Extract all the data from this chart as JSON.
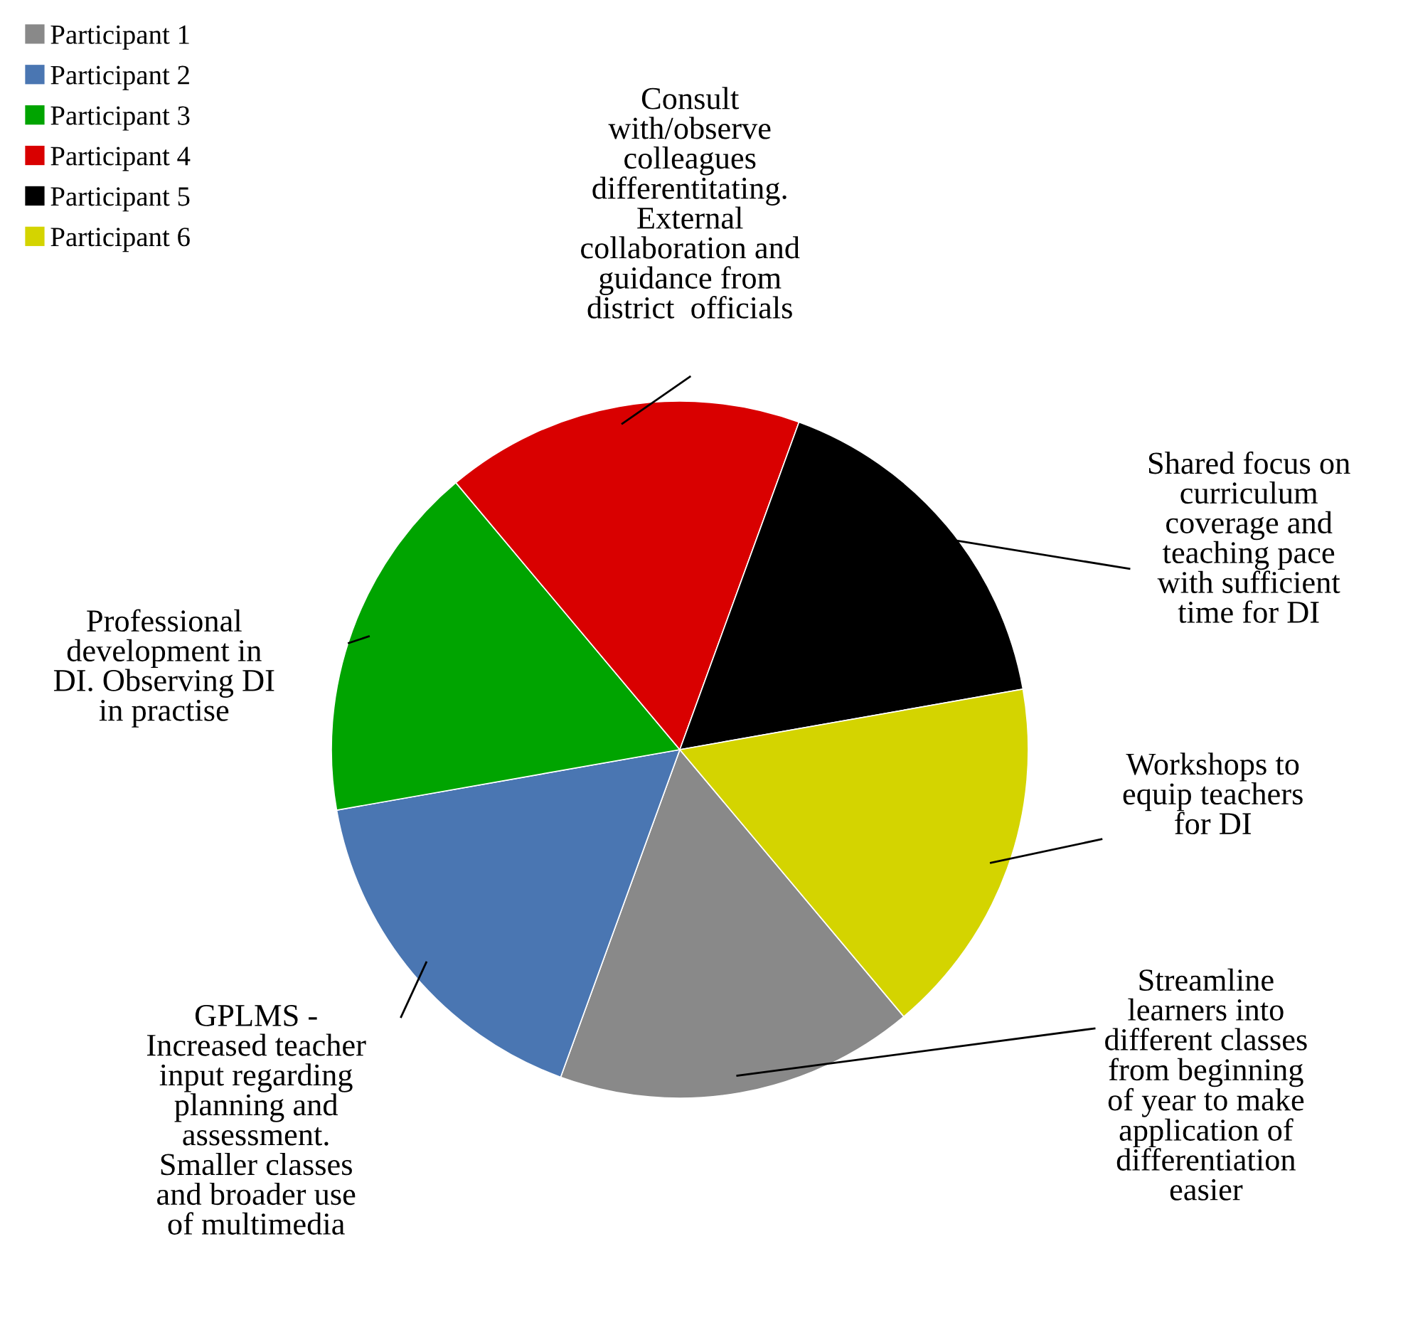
{
  "chart_data": {
    "type": "pie",
    "categories": [
      "Participant 1",
      "Participant 2",
      "Participant 3",
      "Participant 4",
      "Participant 5",
      "Participant 6"
    ],
    "values": [
      16.67,
      16.67,
      16.67,
      16.67,
      16.67,
      16.67
    ],
    "colors": [
      "#898989",
      "#4a76b2",
      "#00a400",
      "#d90000",
      "#000000",
      "#d4d400"
    ],
    "legend": "top left",
    "annotations": [
      "Streamline\nlearners into\ndifferent classes\nfrom beginning\nof year to make\napplication of\ndifferentiation\neasier",
      "GPLMS -\nIncreased teacher\ninput regarding\nplanning and\nassessment.\nSmaller classes\nand broader use\nof multimedia",
      "Professional\ndevelopment in\nDI. Observing DI\nin practise",
      "Consult\nwith/observe\ncolleagues\ndifferentitating.\nExternal\ncollaboration and\nguidance from\ndistrict  officials",
      "Shared focus on\ncurriculum\ncoverage and\nteaching pace\nwith sufficient\ntime for DI",
      "Workshops to\nequip teachers\nfor DI"
    ]
  }
}
